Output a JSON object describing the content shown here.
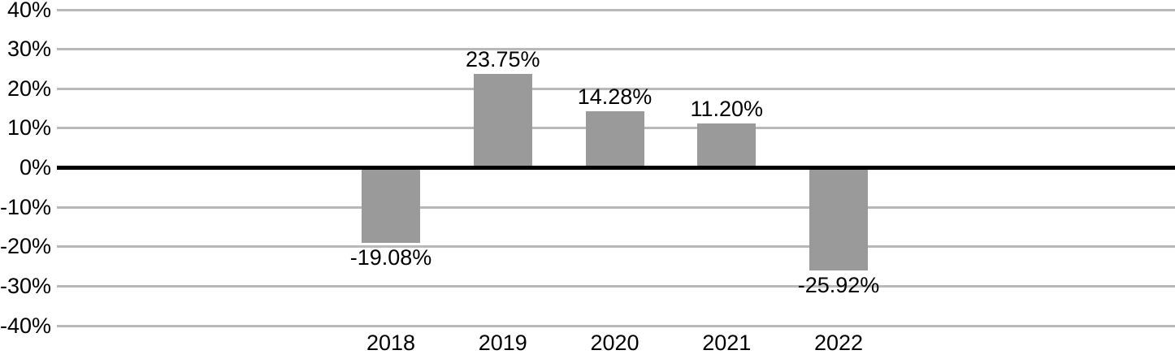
{
  "chart_data": {
    "type": "bar",
    "title": "",
    "xlabel": "",
    "ylabel": "",
    "categories": [
      "2018",
      "2019",
      "2020",
      "2021",
      "2022"
    ],
    "values": [
      -19.08,
      23.75,
      14.28,
      11.2,
      -25.92
    ],
    "data_labels": [
      "-19.08%",
      "23.75%",
      "14.28%",
      "11.20%",
      "-25.92%"
    ],
    "y_ticks": [
      {
        "value": 40,
        "label": "40%"
      },
      {
        "value": 30,
        "label": "30%"
      },
      {
        "value": 20,
        "label": "20%"
      },
      {
        "value": 10,
        "label": "10%"
      },
      {
        "value": 0,
        "label": "0%"
      },
      {
        "value": -10,
        "label": "-10%"
      },
      {
        "value": -20,
        "label": "-20%"
      },
      {
        "value": -30,
        "label": "-30%"
      },
      {
        "value": -40,
        "label": "-40%"
      }
    ],
    "ylim": [
      -40,
      40
    ],
    "grid": true,
    "legend_position": "none",
    "colors": {
      "bar": "#9a9a9a",
      "gridline": "#b9b9b9",
      "zero_line": "#000000",
      "text": "#000000",
      "background": "#ffffff"
    }
  }
}
